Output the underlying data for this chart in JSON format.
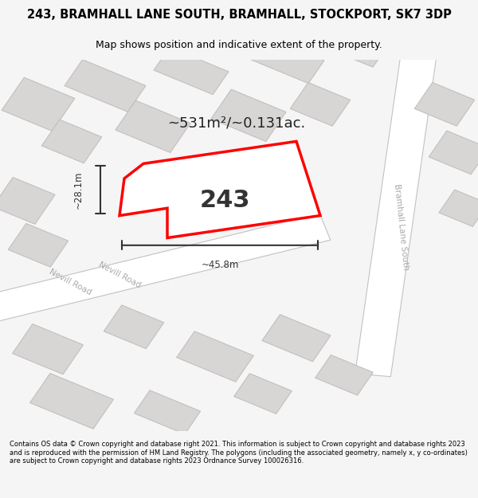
{
  "title_line1": "243, BRAMHALL LANE SOUTH, BRAMHALL, STOCKPORT, SK7 3DP",
  "title_line2": "Map shows position and indicative extent of the property.",
  "area_label": "~531m²/~0.131ac.",
  "plot_number": "243",
  "dim_width": "~45.8m",
  "dim_height": "~28.1m",
  "road1": "Nevill Road",
  "road2": "Nevill Road",
  "road3": "Bramhall Lane South",
  "footer": "Contains OS data © Crown copyright and database right 2021. This information is subject to Crown copyright and database rights 2023 and is reproduced with the permission of HM Land Registry. The polygons (including the associated geometry, namely x, y co-ordinates) are subject to Crown copyright and database rights 2023 Ordnance Survey 100026316.",
  "bg_color": "#f5f5f5",
  "map_bg": "#f0eeee",
  "block_fill": "#d8d5d5",
  "block_edge": "#c0bbbb",
  "road_color": "#ffffff",
  "road_line_color": "#c8c0c0",
  "plot_fill": "#f0f0f0",
  "plot_edge": "#ff0000",
  "dim_color": "#333333",
  "annotation_color": "#333333"
}
